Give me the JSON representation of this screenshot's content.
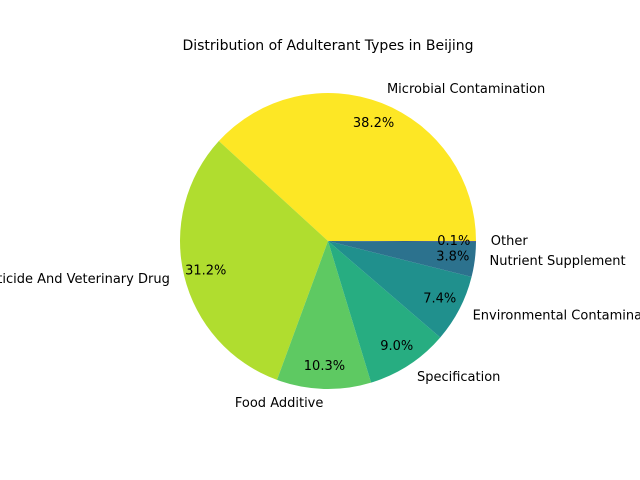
{
  "chart_data": {
    "type": "pie",
    "title": "Distribution of Adulterant Types in Beijing",
    "labels": [
      "Microbial Contamination",
      "Pesticide And Veterinary Drug",
      "Food Additive",
      "Specification",
      "Environmental Contaminant",
      "Nutrient Supplement",
      "Other"
    ],
    "values": [
      38.2,
      31.2,
      10.3,
      9.0,
      7.4,
      3.8,
      0.1
    ],
    "percent_labels": [
      "38.2%",
      "31.2%",
      "10.3%",
      "9.0%",
      "7.4%",
      "3.8%",
      "0.1%"
    ],
    "colors": [
      "#fde725",
      "#b0dd2f",
      "#5ec962",
      "#27ad81",
      "#20908d",
      "#2c728e",
      "#3b528b"
    ],
    "start_angle_deg": 0,
    "direction": "counterclockwise",
    "grid": false,
    "legend": "none"
  }
}
